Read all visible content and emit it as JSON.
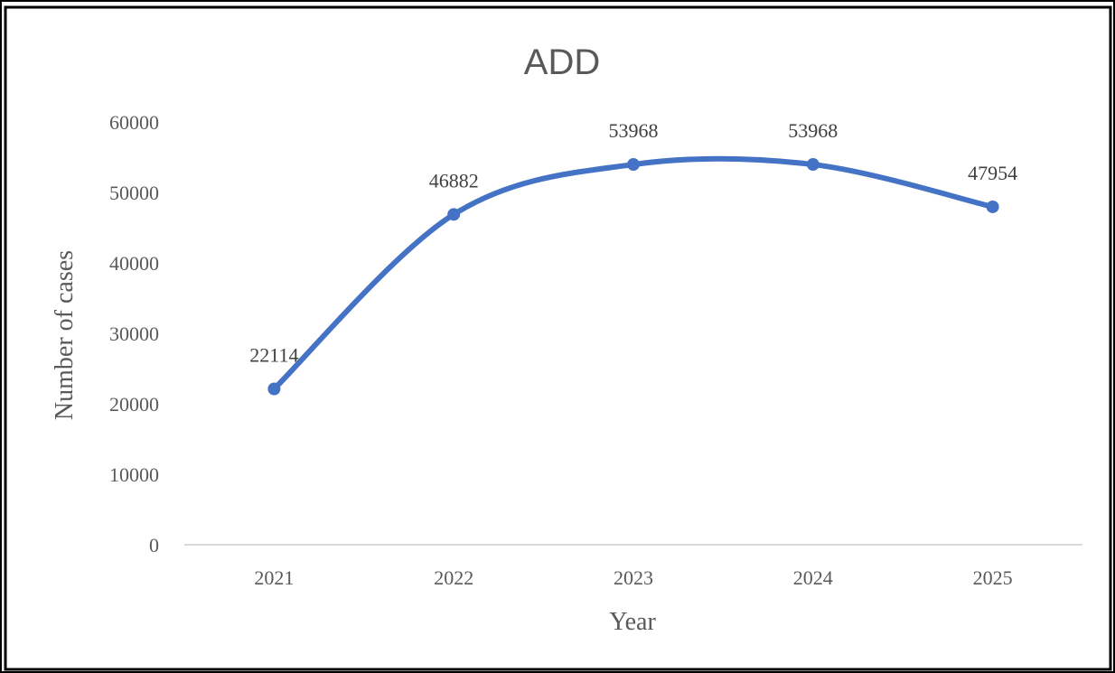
{
  "chart_data": {
    "type": "line",
    "title": "ADD",
    "xlabel": "Year",
    "ylabel": "Number of cases",
    "categories": [
      "2021",
      "2022",
      "2023",
      "2024",
      "2025"
    ],
    "series": [
      {
        "values": [
          22114,
          46882,
          53968,
          53968,
          47954
        ],
        "color": "#4472C4",
        "smooth": true,
        "data_labels": [
          "22114",
          "46882",
          "53968",
          "53968",
          "47954"
        ]
      }
    ],
    "yticks": [
      "0",
      "10000",
      "20000",
      "30000",
      "40000",
      "50000",
      "60000"
    ],
    "ylim": [
      0,
      60000
    ],
    "grid": false,
    "legend": "none"
  },
  "colors": {
    "line": "#4472C4",
    "axis": "#D9D9D9",
    "text": "#595959",
    "frame": "#000000"
  }
}
